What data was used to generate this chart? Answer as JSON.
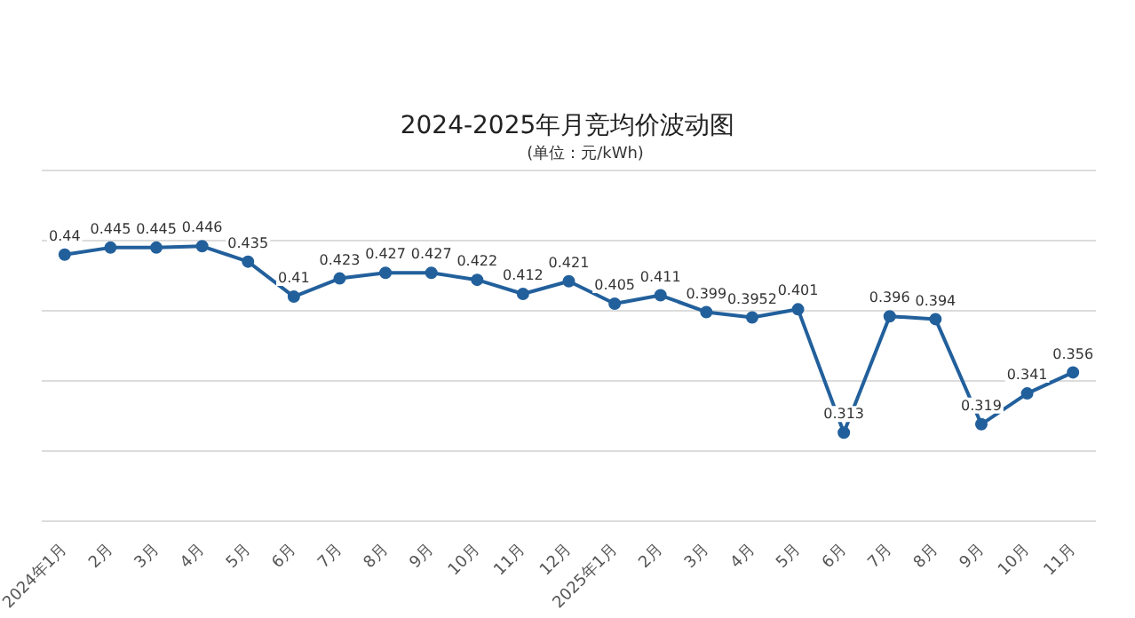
{
  "chart_data": {
    "type": "line",
    "title": "2024-2025年月竞均价波动图",
    "subtitle": "(单位：元/kWh)",
    "categories": [
      "2024年1月",
      "2月",
      "3月",
      "4月",
      "5月",
      "6月",
      "7月",
      "8月",
      "9月",
      "10月",
      "11月",
      "12月",
      "2025年1月",
      "2月",
      "3月",
      "4月",
      "5月",
      "6月",
      "7月",
      "8月",
      "9月",
      "10月",
      "11月"
    ],
    "series": [
      {
        "color": "#22609c",
        "values": [
          0.44,
          0.445,
          0.445,
          0.446,
          0.435,
          0.41,
          0.423,
          0.427,
          0.427,
          0.422,
          0.412,
          0.421,
          0.405,
          0.411,
          0.399,
          0.3952,
          0.401,
          0.313,
          0.396,
          0.394,
          0.319,
          0.341,
          0.356
        ]
      }
    ],
    "ylim": [
      0.25,
      0.5
    ],
    "yticks": [
      {
        "value": 0.25,
        "label": null
      },
      {
        "value": 0.3,
        "label": null
      },
      {
        "value": 0.35,
        "label": null
      },
      {
        "value": 0.4,
        "label": null
      },
      {
        "value": 0.45,
        "label": null
      },
      {
        "value": 0.5,
        "label": null
      }
    ],
    "grid": "y",
    "tick_labels": "x",
    "data_labels": true,
    "marker": "circle",
    "line_style": "solid",
    "legend": false
  }
}
